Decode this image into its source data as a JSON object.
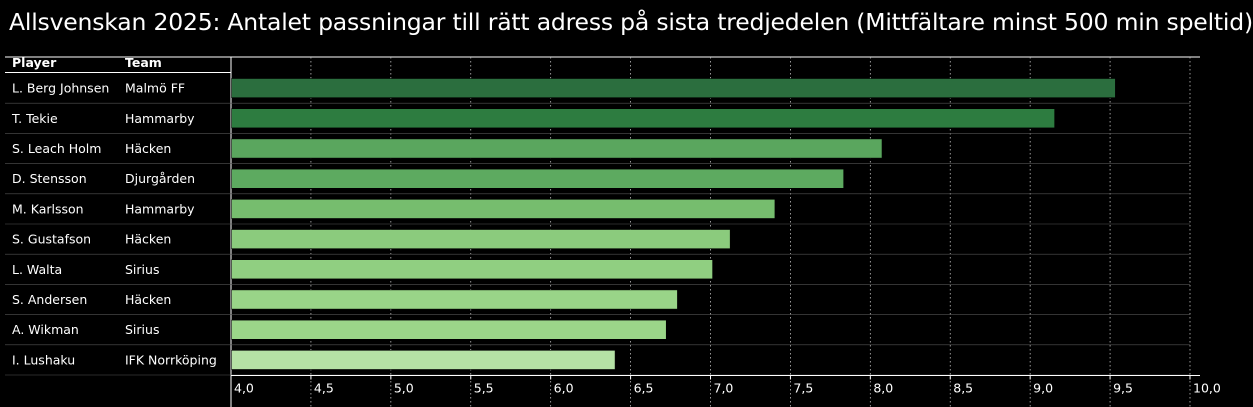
{
  "chart_data": {
    "type": "bar",
    "orientation": "horizontal",
    "title": "Allsvenskan 2025: Antalet passningar till rätt adress på sista tredjedelen (Mittfältare minst 500 min speltid)",
    "table_headers": {
      "player": "Player",
      "team": "Team"
    },
    "rows": [
      {
        "player": "L. Berg Johnsen",
        "team": "Malmö FF",
        "value": 9.53,
        "color": "#2b6e3e"
      },
      {
        "player": "T. Tekie",
        "team": "Hammarby",
        "value": 9.15,
        "color": "#2d7c40"
      },
      {
        "player": "S. Leach Holm",
        "team": "Häcken",
        "value": 8.07,
        "color": "#5aa65e"
      },
      {
        "player": "D. Stensson",
        "team": "Djurgården",
        "value": 7.83,
        "color": "#5daa60"
      },
      {
        "player": "M. Karlsson",
        "team": "Hammarby",
        "value": 7.4,
        "color": "#76bd6e"
      },
      {
        "player": "S. Gustafson",
        "team": "Häcken",
        "value": 7.12,
        "color": "#8bcb7d"
      },
      {
        "player": "L. Walta",
        "team": "Sirius",
        "value": 7.01,
        "color": "#90cf81"
      },
      {
        "player": "S. Andersen",
        "team": "Häcken",
        "value": 6.79,
        "color": "#99d488"
      },
      {
        "player": "A. Wikman",
        "team": "Sirius",
        "value": 6.72,
        "color": "#9bd689"
      },
      {
        "player": "I. Lushaku",
        "team": "IFK Norrköping",
        "value": 6.4,
        "color": "#b5e2a5"
      }
    ],
    "xlim": [
      4.0,
      10.0
    ],
    "x_ticks": [
      4.0,
      4.5,
      5.0,
      5.5,
      6.0,
      6.5,
      7.0,
      7.5,
      8.0,
      8.5,
      9.0,
      9.5,
      10.0
    ],
    "x_tick_labels": [
      "4,0",
      "4,5",
      "5,0",
      "5,5",
      "6,0",
      "6,5",
      "7,0",
      "7,5",
      "8,0",
      "8,5",
      "9,0",
      "9,5",
      "10,0"
    ],
    "grid": "vertical dotted",
    "legend": "none",
    "background_color": "#000000",
    "text_color": "#ffffff"
  }
}
